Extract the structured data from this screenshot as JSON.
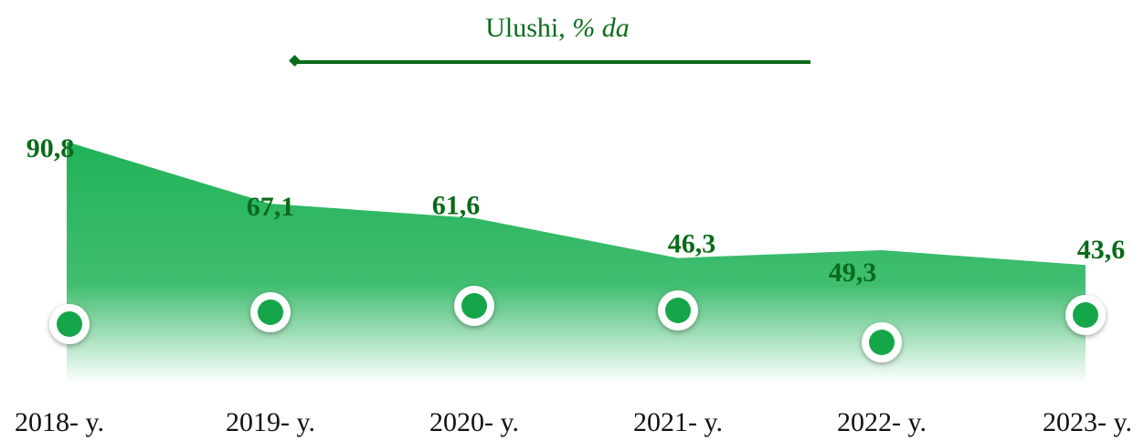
{
  "chart_data": {
    "type": "area",
    "title": "Ulushi,",
    "title_unit": "% da",
    "categories": [
      "2018- y.",
      "2019- y.",
      "2020- y.",
      "2021- y.",
      "2022- y.",
      "2023- y."
    ],
    "values": [
      90.8,
      67.1,
      61.6,
      46.3,
      49.3,
      43.6
    ],
    "value_labels": [
      "90,8",
      "67,1",
      "61,6",
      "46,3",
      "49,3",
      "43,6"
    ],
    "color": "#0a6b1a",
    "fill_color": "#1fb257",
    "ylim": [
      0,
      100
    ]
  }
}
